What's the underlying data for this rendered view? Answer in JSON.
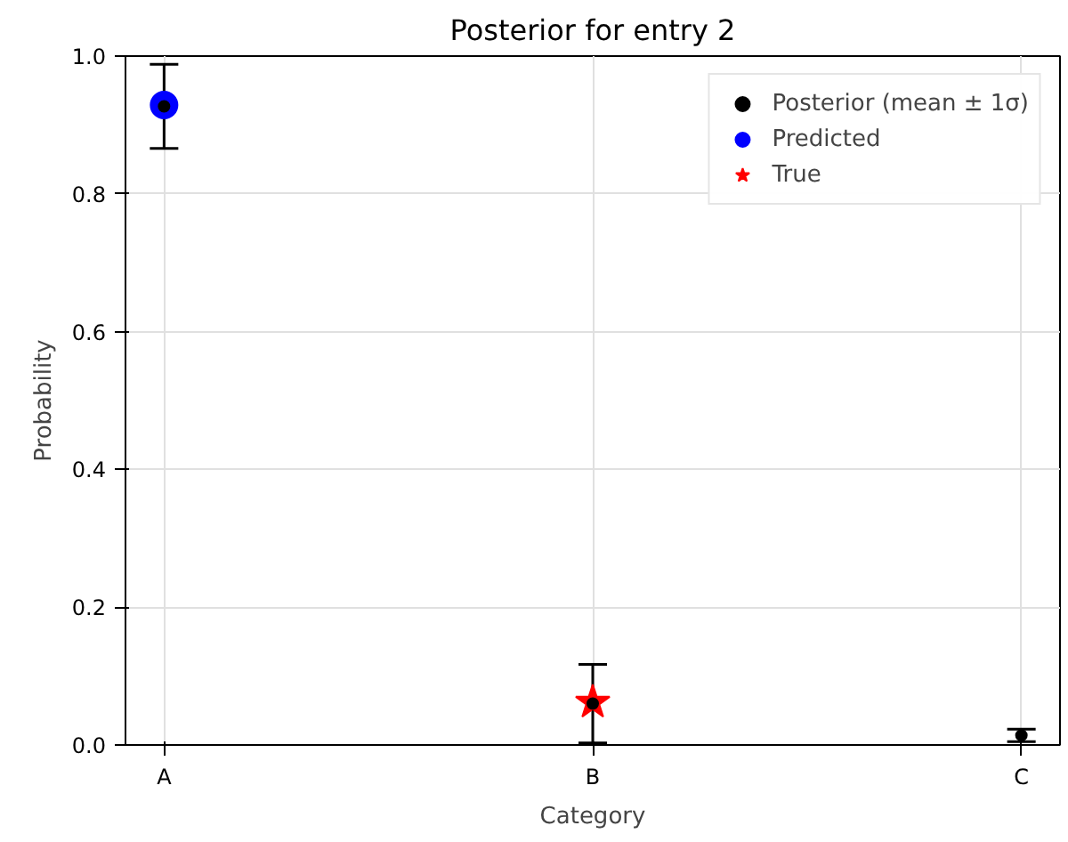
{
  "chart_data": {
    "type": "scatter",
    "title": "Posterior for entry 2",
    "xlabel": "Category",
    "ylabel": "Probability",
    "categories": [
      "A",
      "B",
      "C"
    ],
    "series": [
      {
        "name": "Posterior (mean ± 1σ)",
        "color": "#000000",
        "marker": "circle",
        "values": [
          0.927,
          0.06,
          0.014
        ],
        "errors": [
          0.061,
          0.057,
          0.009
        ]
      },
      {
        "name": "Predicted",
        "color": "#0000ff",
        "marker": "circle",
        "values": [
          0.929,
          null,
          null
        ]
      },
      {
        "name": "True",
        "color": "#ff0000",
        "marker": "star",
        "values": [
          null,
          0.062,
          null
        ]
      }
    ],
    "ylim": [
      0,
      1.0
    ],
    "yticks": [
      {
        "value": 0,
        "label": "0.0"
      },
      0.2,
      0.4,
      0.6,
      0.8,
      {
        "value": 1.0,
        "label": "1.0"
      }
    ],
    "grid": true,
    "legend": "top right"
  }
}
